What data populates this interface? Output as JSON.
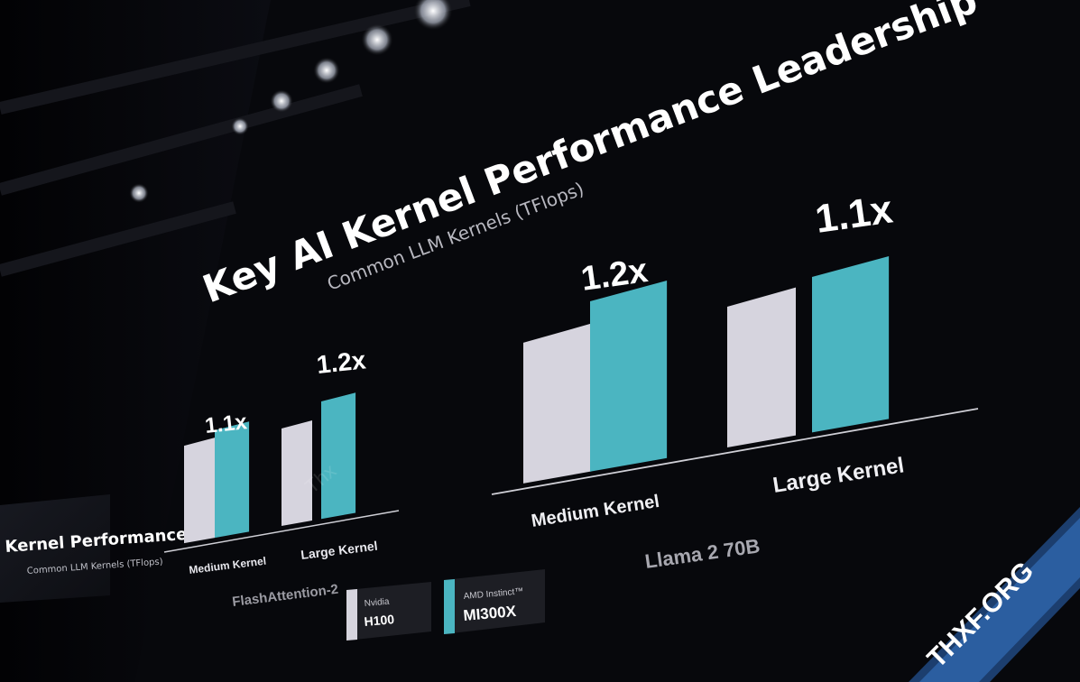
{
  "slide": {
    "title": "Key AI Kernel Performance Leadership",
    "subtitle": "Common LLM Kernels (TFlops)",
    "colors": {
      "background": "#07080c",
      "nvidia_bar": "#d6d4de",
      "amd_bar": "#4bb5c1",
      "text": "#f2f2f4",
      "muted_text": "#b7b7bd"
    }
  },
  "legend": {
    "items": [
      {
        "vendor": "Nvidia",
        "product": "H100",
        "color": "#d6d4de"
      },
      {
        "vendor": "AMD Instinct™",
        "product": "MI300X",
        "color": "#4bb5c1"
      }
    ]
  },
  "side_screen": {
    "title": "Kernel Performance L",
    "subtitle": "Common LLM Kernels (TFlops)"
  },
  "watermark": {
    "text": "THXF.ORG",
    "faint_text": "Thx"
  },
  "chart_data": [
    {
      "type": "bar",
      "group_label": "FlashAttention-2",
      "categories": [
        "Medium Kernel",
        "Large Kernel"
      ],
      "series": [
        {
          "name": "H100",
          "values": [
            1.0,
            1.0
          ]
        },
        {
          "name": "MI300X",
          "values": [
            1.1,
            1.2
          ]
        }
      ],
      "data_labels": [
        "1.1x",
        "1.2x"
      ],
      "units": "TFlops (relative)"
    },
    {
      "type": "bar",
      "group_label": "Llama 2 70B",
      "categories": [
        "Medium Kernel",
        "Large Kernel"
      ],
      "series": [
        {
          "name": "H100",
          "values": [
            1.0,
            1.0
          ]
        },
        {
          "name": "MI300X",
          "values": [
            1.2,
            1.1
          ]
        }
      ],
      "data_labels": [
        "1.2x",
        "1.1x"
      ],
      "units": "TFlops (relative)"
    }
  ]
}
